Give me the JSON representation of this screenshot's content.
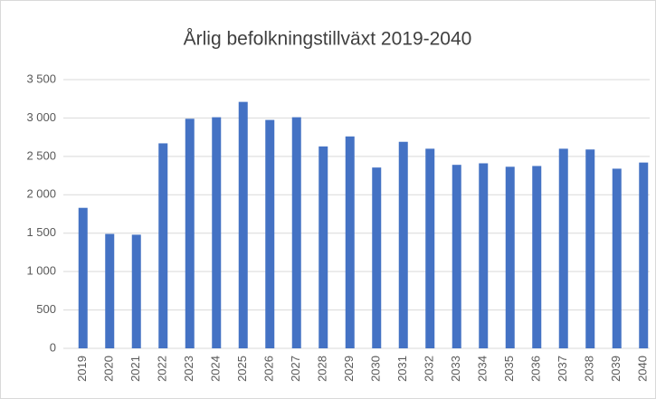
{
  "chart_data": {
    "type": "bar",
    "title": "Årlig befolkningstillväxt 2019-2040",
    "categories": [
      "2019",
      "2020",
      "2021",
      "2022",
      "2023",
      "2024",
      "2025",
      "2026",
      "2027",
      "2028",
      "2029",
      "2030",
      "2031",
      "2032",
      "2033",
      "2034",
      "2035",
      "2036",
      "2037",
      "2038",
      "2039",
      "2040"
    ],
    "values": [
      1830,
      1490,
      1480,
      2670,
      2990,
      3010,
      3210,
      2975,
      3010,
      2630,
      2760,
      2355,
      2690,
      2600,
      2390,
      2410,
      2365,
      2375,
      2600,
      2590,
      2340,
      2420
    ],
    "color": "#4472c4",
    "ylim": [
      0,
      3500
    ],
    "yticks": [
      0,
      500,
      {
        "value": 1000,
        "label": "1 000"
      },
      {
        "value": 1500,
        "label": "1 500"
      },
      {
        "value": 2000,
        "label": "2 000"
      },
      {
        "value": 2500,
        "label": "2 500"
      },
      {
        "value": 3000,
        "label": "3 000"
      },
      {
        "value": 3500,
        "label": "3 500"
      }
    ],
    "grid": true
  }
}
